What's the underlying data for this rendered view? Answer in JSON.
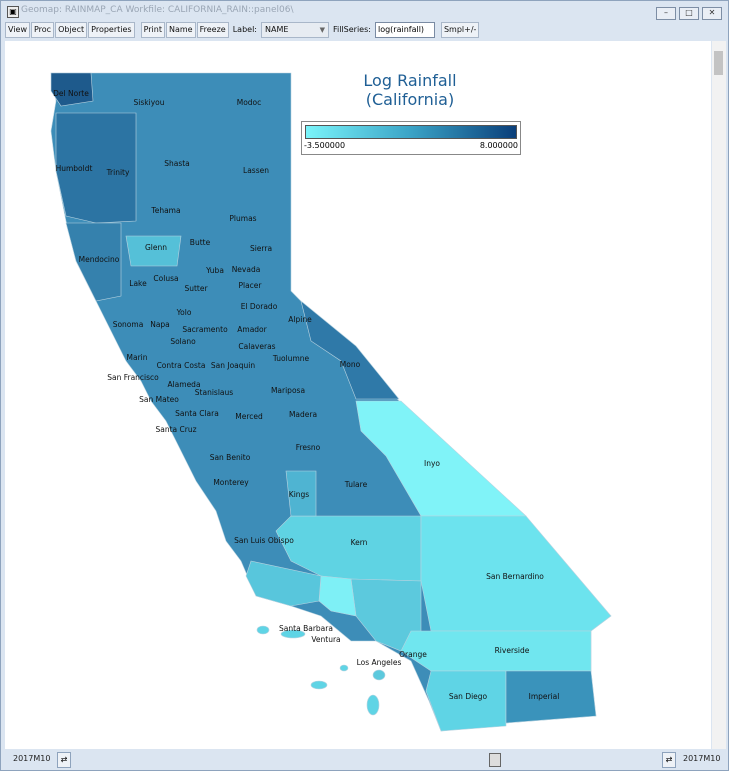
{
  "window": {
    "title": "Geomap: RAINMAP_CA   Workfile: CALIFORNIA_RAIN::panel06\\"
  },
  "toolbar": {
    "view": "View",
    "proc": "Proc",
    "object": "Object",
    "properties": "Properties",
    "print": "Print",
    "name": "Name",
    "freeze": "Freeze",
    "label_caption": "Label:",
    "label_value": "NAME",
    "fillseries_caption": "FillSeries:",
    "fillseries_value": "log(rainfall)",
    "smpl": "Smpl+/-"
  },
  "map": {
    "title_line1": "Log Rainfall",
    "title_line2": "(California)",
    "legend": {
      "min": "-3.500000",
      "max": "8.000000",
      "color_low": "#7af4fa",
      "color_high": "#0b3f7a"
    },
    "counties": [
      "Del Norte",
      "Siskiyou",
      "Modoc",
      "Humboldt",
      "Trinity",
      "Shasta",
      "Lassen",
      "Tehama",
      "Plumas",
      "Glenn",
      "Butte",
      "Sierra",
      "Mendocino",
      "Yuba",
      "Nevada",
      "Lake",
      "Colusa",
      "Sutter",
      "Placer",
      "El Dorado",
      "Yolo",
      "Sonoma",
      "Napa",
      "Sacramento",
      "Amador",
      "Alpine",
      "Solano",
      "Calaveras",
      "Marin",
      "Tuolumne",
      "Mono",
      "Contra Costa",
      "San Joaquin",
      "San Francisco",
      "Alameda",
      "Mariposa",
      "Stanislaus",
      "San Mateo",
      "Santa Clara",
      "Merced",
      "Madera",
      "Santa Cruz",
      "Fresno",
      "Inyo",
      "San Benito",
      "Tulare",
      "Monterey",
      "Kings",
      "San Luis Obispo",
      "Kern",
      "San Bernardino",
      "Santa Barbara",
      "Ventura",
      "Los Angeles",
      "Orange",
      "Riverside",
      "San Diego",
      "Imperial"
    ]
  },
  "status": {
    "start": "2017M10",
    "end": "2017M10"
  }
}
